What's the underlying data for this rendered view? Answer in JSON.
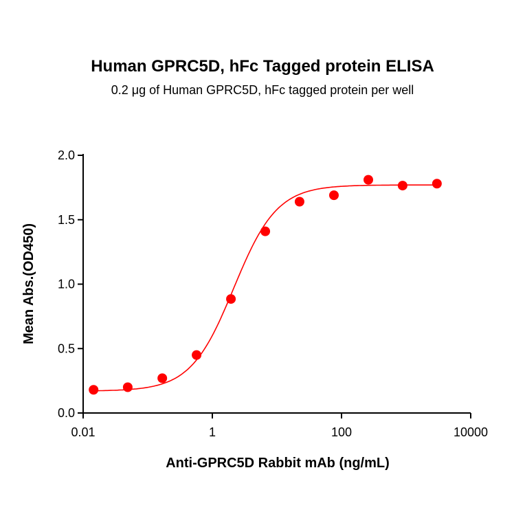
{
  "chart_data": {
    "type": "scatter",
    "title": "Human GPRC5D, hFc Tagged protein ELISA",
    "subtitle": "0.2 μg of Human GPRC5D, hFc tagged protein per well",
    "xlabel": "Anti-GPRC5D Rabbit mAb (ng/mL)",
    "ylabel": "Mean Abs.(OD450)",
    "xscale": "log",
    "xlim": [
      0.01,
      10000
    ],
    "ylim": [
      0,
      2.0
    ],
    "xticks": [
      "0.01",
      "1",
      "100",
      "10000"
    ],
    "xtick_values": [
      0.01,
      1,
      100,
      10000
    ],
    "yticks": [
      "0.0",
      "0.5",
      "1.0",
      "1.5",
      "2.0"
    ],
    "ytick_values": [
      0,
      0.5,
      1.0,
      1.5,
      2.0
    ],
    "grid": false,
    "color": "#ff0000",
    "series": [
      {
        "x": [
          0.0145,
          0.049,
          0.168,
          0.57,
          1.94,
          6.6,
          22.4,
          76.3,
          260,
          882,
          3000
        ],
        "y": [
          0.18,
          0.2,
          0.27,
          0.45,
          0.885,
          1.41,
          1.64,
          1.69,
          1.81,
          1.765,
          1.78
        ],
        "fit": "four-parameter logistic curve"
      }
    ]
  }
}
